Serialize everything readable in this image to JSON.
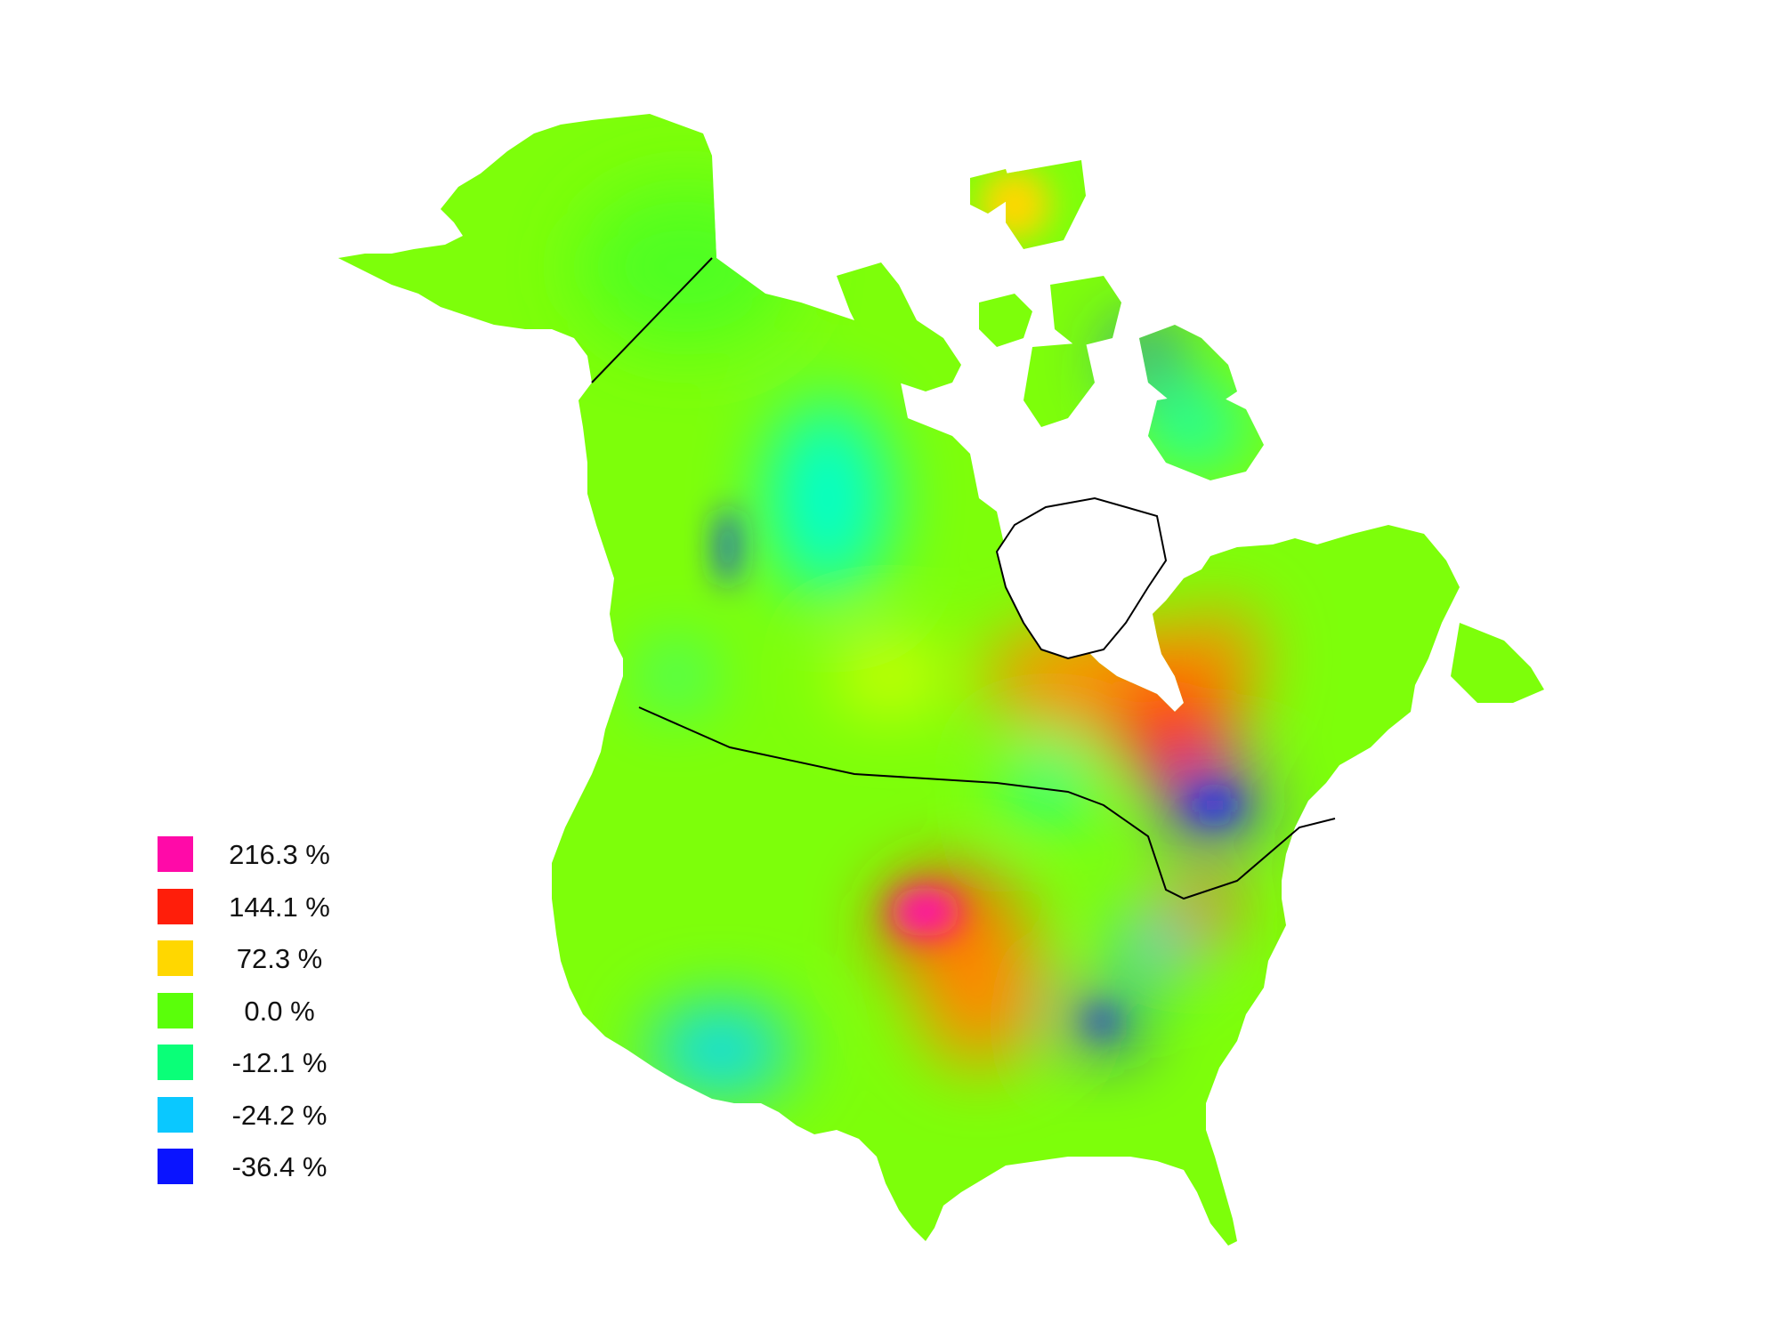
{
  "map": {
    "region": "North America (Canada, United States, Mexico border)",
    "legend": [
      {
        "value": 216.3,
        "label": "216.3 %",
        "color": "#ff0aa8"
      },
      {
        "value": 144.1,
        "label": "144.1 %",
        "color": "#ff1e0a"
      },
      {
        "value": 72.3,
        "label": "72.3 %",
        "color": "#ffd700"
      },
      {
        "value": 0.0,
        "label": "0.0 %",
        "color": "#5aff0a"
      },
      {
        "value": -12.1,
        "label": "-12.1 %",
        "color": "#0aff78"
      },
      {
        "value": -24.2,
        "label": "-24.2 %",
        "color": "#0ac8ff"
      },
      {
        "value": -36.4,
        "label": "-36.4 %",
        "color": "#0a14ff"
      }
    ],
    "colors": {
      "land_base": "#7dff0a",
      "border": "#000000",
      "water": "#ffffff"
    }
  }
}
